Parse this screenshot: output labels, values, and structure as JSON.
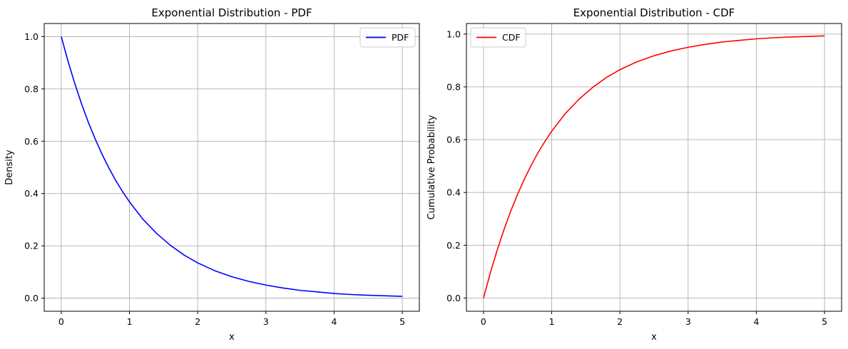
{
  "chart_data": [
    {
      "type": "line",
      "title": "Exponential Distribution - PDF",
      "xlabel": "x",
      "ylabel": "Density",
      "xlim": [
        -0.25,
        5.25
      ],
      "ylim": [
        -0.05,
        1.05
      ],
      "xticks": [
        0,
        1,
        2,
        3,
        4,
        5
      ],
      "xtick_labels": [
        "0",
        "1",
        "2",
        "3",
        "4",
        "5"
      ],
      "yticks": [
        0.0,
        0.2,
        0.4,
        0.6,
        0.8,
        1.0
      ],
      "ytick_labels": [
        "0.0",
        "0.2",
        "0.4",
        "0.6",
        "0.8",
        "1.0"
      ],
      "grid": true,
      "legend_position": "upper right",
      "series": [
        {
          "name": "PDF",
          "color": "#0000ff",
          "x": [
            0,
            0.1,
            0.2,
            0.3,
            0.4,
            0.5,
            0.6,
            0.7,
            0.8,
            0.9,
            1.0,
            1.2,
            1.4,
            1.6,
            1.8,
            2.0,
            2.25,
            2.5,
            2.75,
            3.0,
            3.25,
            3.5,
            3.75,
            4.0,
            4.25,
            4.5,
            4.75,
            5.0
          ],
          "y": [
            1.0,
            0.905,
            0.819,
            0.741,
            0.67,
            0.607,
            0.549,
            0.497,
            0.449,
            0.407,
            0.368,
            0.301,
            0.247,
            0.202,
            0.165,
            0.135,
            0.105,
            0.082,
            0.064,
            0.05,
            0.039,
            0.03,
            0.024,
            0.018,
            0.014,
            0.011,
            0.009,
            0.007
          ]
        }
      ]
    },
    {
      "type": "line",
      "title": "Exponential Distribution - CDF",
      "xlabel": "x",
      "ylabel": "Cumulative Probability",
      "xlim": [
        -0.25,
        5.25
      ],
      "ylim": [
        -0.05,
        1.04
      ],
      "xticks": [
        0,
        1,
        2,
        3,
        4,
        5
      ],
      "xtick_labels": [
        "0",
        "1",
        "2",
        "3",
        "4",
        "5"
      ],
      "yticks": [
        0.0,
        0.2,
        0.4,
        0.6,
        0.8,
        1.0
      ],
      "ytick_labels": [
        "0.0",
        "0.2",
        "0.4",
        "0.6",
        "0.8",
        "1.0"
      ],
      "grid": true,
      "legend_position": "upper left",
      "series": [
        {
          "name": "CDF",
          "color": "#ff0000",
          "x": [
            0,
            0.1,
            0.2,
            0.3,
            0.4,
            0.5,
            0.6,
            0.7,
            0.8,
            0.9,
            1.0,
            1.2,
            1.4,
            1.6,
            1.8,
            2.0,
            2.25,
            2.5,
            2.75,
            3.0,
            3.25,
            3.5,
            3.75,
            4.0,
            4.25,
            4.5,
            4.75,
            5.0
          ],
          "y": [
            0.0,
            0.095,
            0.181,
            0.259,
            0.33,
            0.393,
            0.451,
            0.503,
            0.551,
            0.593,
            0.632,
            0.699,
            0.753,
            0.798,
            0.835,
            0.865,
            0.895,
            0.918,
            0.936,
            0.95,
            0.961,
            0.97,
            0.976,
            0.982,
            0.986,
            0.989,
            0.991,
            0.993
          ]
        }
      ]
    }
  ]
}
